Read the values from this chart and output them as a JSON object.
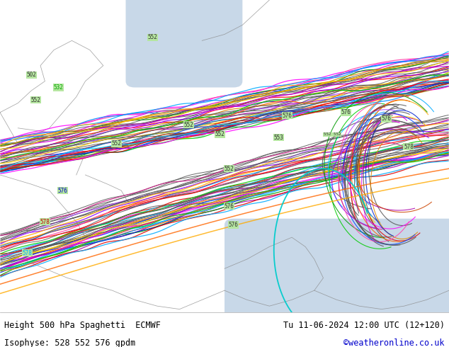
{
  "title_left": "Height 500 hPa Spaghetti  ECMWF",
  "title_right": "Tu 11-06-2024 12:00 UTC (12+120)",
  "subtitle_left": "Isophyse: 528 552 576 gpdm",
  "subtitle_right": "©weatheronline.co.uk",
  "bg_land_color": "#b5e6a0",
  "bg_sea_color": "#c8d8e8",
  "map_border_color": "#888888",
  "bottom_bg_color": "#ffffff",
  "watermark_color": "#0000cc",
  "figsize": [
    6.34,
    4.9
  ],
  "dpi": 100
}
